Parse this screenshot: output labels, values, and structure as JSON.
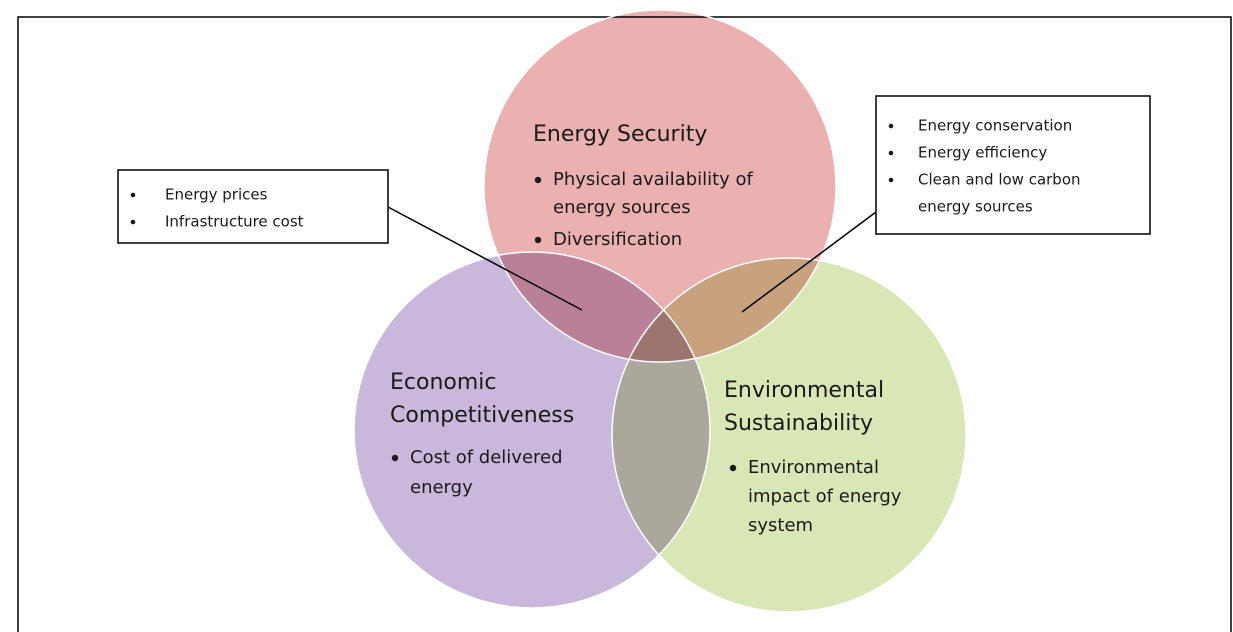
{
  "circles": [
    {
      "title_lines": [
        "Energy Security"
      ],
      "bullets": [
        [
          "Physical availability of",
          "energy  sources"
        ],
        [
          "Diversification"
        ]
      ]
    },
    {
      "title_lines": [
        "Economic",
        "Competitiveness"
      ],
      "bullets": [
        [
          "Cost of delivered",
          "energy"
        ]
      ]
    },
    {
      "title_lines": [
        "Environmental",
        "Sustainability"
      ],
      "bullets": [
        [
          "Environmental",
          "impact of energy",
          "system"
        ]
      ]
    }
  ],
  "callouts": [
    {
      "items": [
        [
          "Energy prices"
        ],
        [
          "Infrastructure cost"
        ]
      ]
    },
    {
      "items": [
        [
          "Energy conservation"
        ],
        [
          "Energy efficiency"
        ],
        [
          "Clean and low carbon",
          "energy sources"
        ]
      ]
    }
  ]
}
